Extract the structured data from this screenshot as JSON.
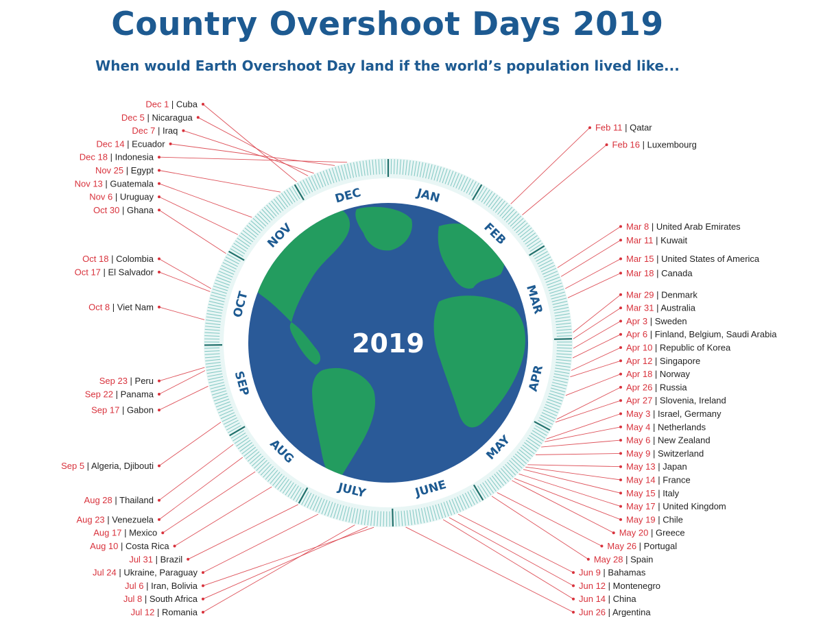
{
  "title": "Country Overshoot Days 2019",
  "subtitle": "When would Earth Overshoot Day land if the world’s population lived like...",
  "center_year": "2019",
  "months": [
    "JAN",
    "FEB",
    "MAR",
    "APR",
    "MAY",
    "JUNE",
    "JULY",
    "AUG",
    "SEP",
    "OCT",
    "NOV",
    "DEC"
  ],
  "colors": {
    "title": "#1d5a91",
    "date": "#d8323c",
    "country": "#222222",
    "ocean": "#2a5a98",
    "land": "#23a25a",
    "ring": "#7fc7c2",
    "month_label": "#1d5a91"
  },
  "entries": [
    {
      "day": 42,
      "date": "Feb 11",
      "country": "Qatar",
      "side": "right"
    },
    {
      "day": 47,
      "date": "Feb 16",
      "country": "Luxembourg",
      "side": "right"
    },
    {
      "day": 67,
      "date": "Mar 8",
      "country": "United Arab Emirates",
      "side": "right"
    },
    {
      "day": 70,
      "date": "Mar 11",
      "country": "Kuwait",
      "side": "right"
    },
    {
      "day": 74,
      "date": "Mar 15",
      "country": "United States of America",
      "side": "right"
    },
    {
      "day": 77,
      "date": "Mar 18",
      "country": "Canada",
      "side": "right"
    },
    {
      "day": 88,
      "date": "Mar 29",
      "country": "Denmark",
      "side": "right"
    },
    {
      "day": 90,
      "date": "Mar 31",
      "country": "Australia",
      "side": "right"
    },
    {
      "day": 93,
      "date": "Apr 3",
      "country": "Sweden",
      "side": "right"
    },
    {
      "day": 96,
      "date": "Apr 6",
      "country": "Finland, Belgium, Saudi Arabia",
      "side": "right"
    },
    {
      "day": 100,
      "date": "Apr 10",
      "country": "Republic of Korea",
      "side": "right"
    },
    {
      "day": 102,
      "date": "Apr 12",
      "country": "Singapore",
      "side": "right"
    },
    {
      "day": 108,
      "date": "Apr 18",
      "country": "Norway",
      "side": "right"
    },
    {
      "day": 116,
      "date": "Apr 26",
      "country": "Russia",
      "side": "right"
    },
    {
      "day": 117,
      "date": "Apr 27",
      "country": "Slovenia, Ireland",
      "side": "right"
    },
    {
      "day": 123,
      "date": "May 3",
      "country": "Israel, Germany",
      "side": "right"
    },
    {
      "day": 124,
      "date": "May 4",
      "country": "Netherlands",
      "side": "right"
    },
    {
      "day": 126,
      "date": "May 6",
      "country": "New Zealand",
      "side": "right"
    },
    {
      "day": 129,
      "date": "May 9",
      "country": "Switzerland",
      "side": "right"
    },
    {
      "day": 133,
      "date": "May 13",
      "country": "Japan",
      "side": "right"
    },
    {
      "day": 134,
      "date": "May 14",
      "country": "France",
      "side": "right"
    },
    {
      "day": 135,
      "date": "May 15",
      "country": "Italy",
      "side": "right"
    },
    {
      "day": 137,
      "date": "May 17",
      "country": "United Kingdom",
      "side": "right"
    },
    {
      "day": 139,
      "date": "May 19",
      "country": "Chile",
      "side": "right"
    },
    {
      "day": 140,
      "date": "May 20",
      "country": "Greece",
      "side": "right"
    },
    {
      "day": 146,
      "date": "May 26",
      "country": "Portugal",
      "side": "right"
    },
    {
      "day": 148,
      "date": "May 28",
      "country": "Spain",
      "side": "right"
    },
    {
      "day": 160,
      "date": "Jun 9",
      "country": "Bahamas",
      "side": "right"
    },
    {
      "day": 163,
      "date": "Jun 12",
      "country": "Montenegro",
      "side": "right"
    },
    {
      "day": 165,
      "date": "Jun 14",
      "country": "China",
      "side": "right"
    },
    {
      "day": 177,
      "date": "Jun 26",
      "country": "Argentina",
      "side": "right"
    },
    {
      "day": 187,
      "date": "Jul 6",
      "country": "Iran, Bolivia",
      "side": "left"
    },
    {
      "day": 189,
      "date": "Jul 8",
      "country": "South Africa",
      "side": "left"
    },
    {
      "day": 193,
      "date": "Jul 12",
      "country": "Romania",
      "side": "left"
    },
    {
      "day": 205,
      "date": "Jul 24",
      "country": "Ukraine, Paraguay",
      "side": "left"
    },
    {
      "day": 212,
      "date": "Jul 31",
      "country": "Brazil",
      "side": "left"
    },
    {
      "day": 222,
      "date": "Aug 10",
      "country": "Costa Rica",
      "side": "left"
    },
    {
      "day": 229,
      "date": "Aug 17",
      "country": "Mexico",
      "side": "left"
    },
    {
      "day": 235,
      "date": "Aug 23",
      "country": "Venezuela",
      "side": "left"
    },
    {
      "day": 240,
      "date": "Aug 28",
      "country": "Thailand",
      "side": "left"
    },
    {
      "day": 248,
      "date": "Sep 5",
      "country": "Algeria, Djibouti",
      "side": "left"
    },
    {
      "day": 260,
      "date": "Sep 17",
      "country": "Gabon",
      "side": "left"
    },
    {
      "day": 265,
      "date": "Sep 22",
      "country": "Panama",
      "side": "left"
    },
    {
      "day": 266,
      "date": "Sep 23",
      "country": "Peru",
      "side": "left"
    },
    {
      "day": 281,
      "date": "Oct 8",
      "country": "Viet Nam",
      "side": "left"
    },
    {
      "day": 290,
      "date": "Oct 17",
      "country": "El Salvador",
      "side": "left"
    },
    {
      "day": 291,
      "date": "Oct 18",
      "country": "Colombia",
      "side": "left"
    },
    {
      "day": 303,
      "date": "Oct 30",
      "country": "Ghana",
      "side": "left"
    },
    {
      "day": 310,
      "date": "Nov 6",
      "country": "Uruguay",
      "side": "left"
    },
    {
      "day": 317,
      "date": "Nov 13",
      "country": "Guatemala",
      "side": "left"
    },
    {
      "day": 329,
      "date": "Nov 25",
      "country": "Egypt",
      "side": "left"
    },
    {
      "day": 335,
      "date": "Dec 1",
      "country": "Cuba",
      "side": "left"
    },
    {
      "day": 339,
      "date": "Dec 5",
      "country": "Nicaragua",
      "side": "left"
    },
    {
      "day": 341,
      "date": "Dec 7",
      "country": "Iraq",
      "side": "left"
    },
    {
      "day": 348,
      "date": "Dec 14",
      "country": "Ecuador",
      "side": "left"
    },
    {
      "day": 352,
      "date": "Dec 18",
      "country": "Indonesia",
      "side": "left"
    }
  ]
}
